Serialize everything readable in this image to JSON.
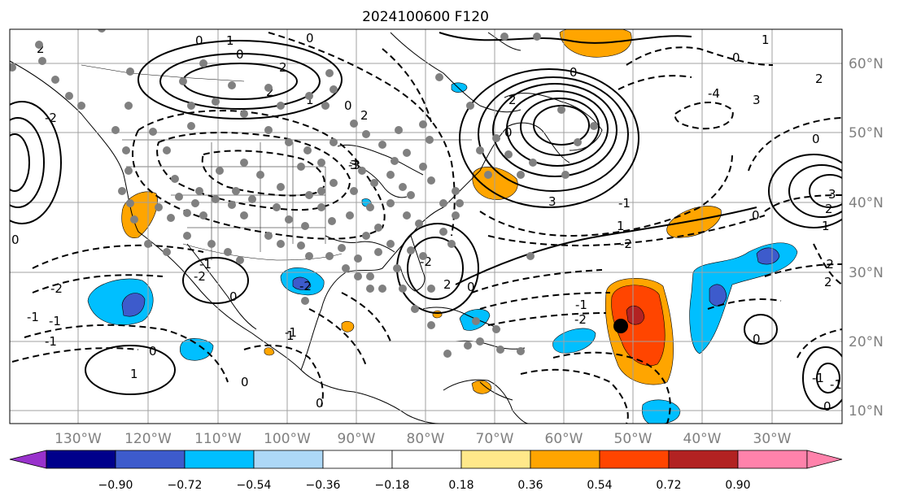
{
  "title": "2024100600 F120",
  "map": {
    "lon_labels": [
      "130°W",
      "120°W",
      "110°W",
      "100°W",
      "90°W",
      "80°W",
      "70°W",
      "60°W",
      "50°W",
      "40°W",
      "30°W"
    ],
    "lat_labels": [
      "60°N",
      "50°N",
      "40°N",
      "30°N",
      "20°N",
      "10°N"
    ],
    "contour_labels": [
      "0",
      "1",
      "2",
      "0",
      "2",
      "0",
      "1",
      "2",
      "3",
      "0",
      "2",
      "0",
      "3",
      "0",
      "2",
      "1",
      "2",
      "3",
      "0",
      "1",
      "2",
      "0",
      "-1",
      "-2",
      "-1",
      "-2",
      "-1",
      "0",
      "1",
      "0",
      "0",
      "2",
      "-2",
      "-2",
      "-1",
      "-2",
      "-1",
      "-2",
      "0",
      "0",
      "0",
      "1",
      "0",
      "-1",
      "0",
      "1",
      "2",
      "3",
      "-3",
      "-4",
      "-2",
      "-1",
      "-1",
      "-2",
      "-1",
      "0"
    ],
    "colors": {
      "land_outline": "#000000",
      "gridline": "#a0a0a0",
      "stations": "#808080",
      "center_marker": "#000000"
    }
  },
  "colorbar": {
    "labels": [
      "−0.90",
      "−0.72",
      "−0.54",
      "−0.36",
      "−0.18",
      "0.18",
      "0.36",
      "0.54",
      "0.72",
      "0.90"
    ],
    "colors": [
      "#9932cc",
      "#00008b",
      "#3d5bcc",
      "#00bfff",
      "#add8f7",
      "#ffffff",
      "#ffe88a",
      "#ffa500",
      "#ff4500",
      "#b22222",
      "#ff82ab"
    ]
  }
}
